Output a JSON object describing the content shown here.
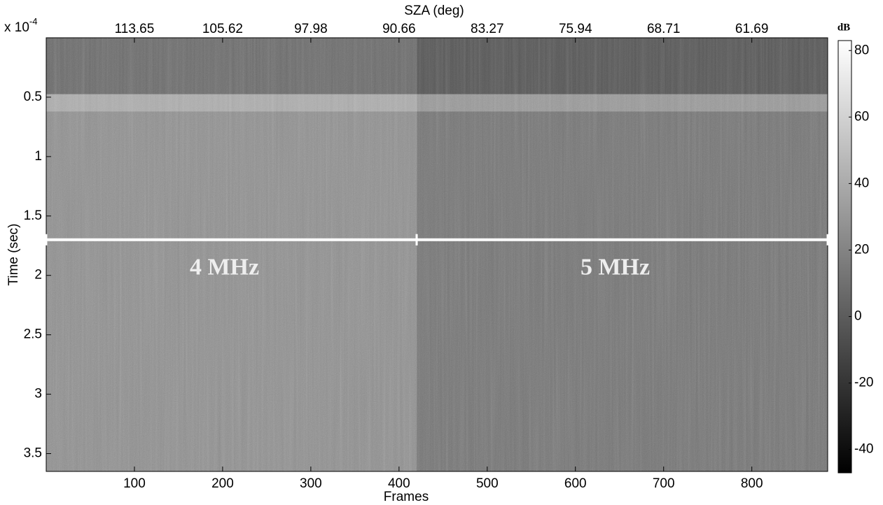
{
  "chart_data": {
    "type": "spectrogram",
    "xlabel": "Frames",
    "ylabel": "Time (sec)",
    "y_multiplier": {
      "base": "x 10",
      "exponent": "-4"
    },
    "xlim": [
      0,
      886
    ],
    "xticks": [
      100,
      200,
      300,
      400,
      500,
      600,
      700,
      800
    ],
    "ylim": [
      0,
      3.65
    ],
    "y_reversed": true,
    "yticks": [
      0.5,
      1,
      1.5,
      2,
      2.5,
      3,
      3.5
    ],
    "x2label": "SZA (deg)",
    "x2ticks": [
      {
        "value": 100,
        "label": "113.65"
      },
      {
        "value": 200,
        "label": "105.62"
      },
      {
        "value": 300,
        "label": "97.98"
      },
      {
        "value": 400,
        "label": "90.66"
      },
      {
        "value": 500,
        "label": "83.27"
      },
      {
        "value": 600,
        "label": "75.94"
      },
      {
        "value": 700,
        "label": "68.71"
      },
      {
        "value": 800,
        "label": "61.69"
      }
    ],
    "colorbar_label": "dB",
    "clim": [
      -47,
      83
    ],
    "cticks": [
      -40,
      -20,
      0,
      20,
      40,
      60,
      80
    ],
    "band_time": 1.7,
    "bands": [
      {
        "label": "4 MHz",
        "frames": [
          0,
          420
        ],
        "color": "#8c8c8c"
      },
      {
        "label": "5 MHz",
        "frames": [
          420,
          886
        ],
        "color": "#727272"
      }
    ]
  }
}
